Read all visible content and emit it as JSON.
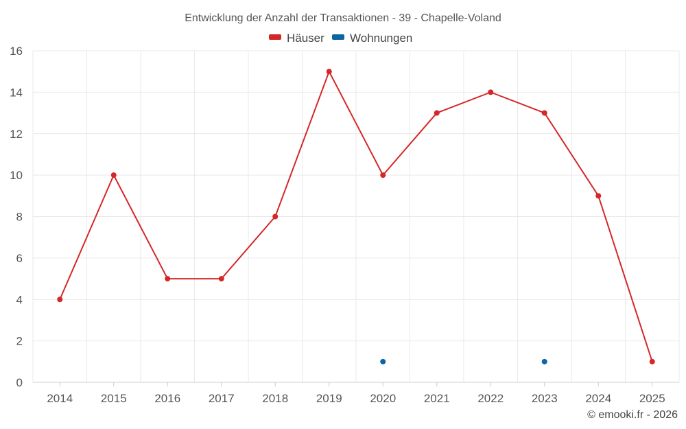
{
  "chart_data": {
    "type": "line",
    "title": "Entwicklung der Anzahl der Transaktionen - 39 - Chapelle-Voland",
    "categories": [
      "2014",
      "2015",
      "2016",
      "2017",
      "2018",
      "2019",
      "2020",
      "2021",
      "2022",
      "2023",
      "2024",
      "2025"
    ],
    "series": [
      {
        "name": "Häuser",
        "color": "#d62728",
        "values": [
          4,
          10,
          5,
          5,
          8,
          15,
          10,
          13,
          14,
          13,
          9,
          1
        ]
      },
      {
        "name": "Wohnungen",
        "color": "#0b66a3",
        "values": [
          null,
          null,
          null,
          null,
          null,
          null,
          1,
          null,
          null,
          1,
          null,
          null
        ]
      }
    ],
    "ylim": [
      0,
      16
    ],
    "yticks": [
      0,
      2,
      4,
      6,
      8,
      10,
      12,
      14,
      16
    ],
    "xlabel": "",
    "ylabel": "",
    "grid": true,
    "legend": "top-center"
  },
  "credit": "© emooki.fr - 2026"
}
